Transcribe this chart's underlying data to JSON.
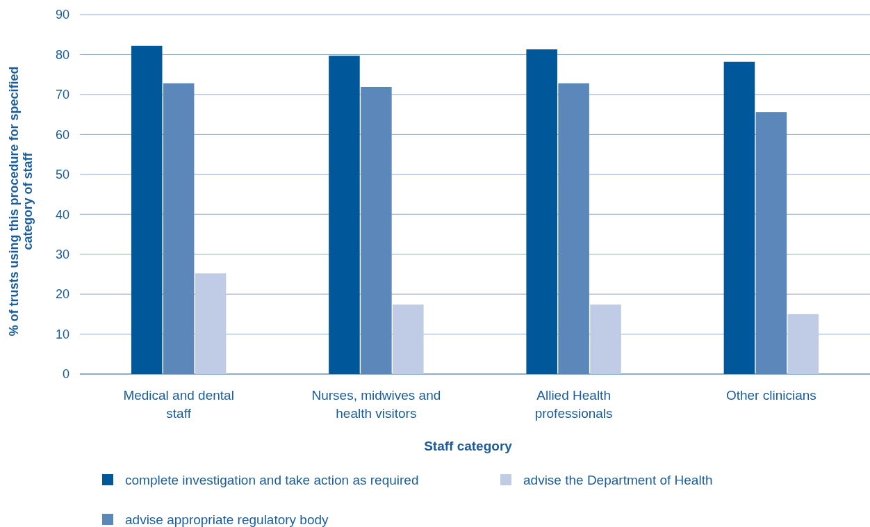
{
  "chart_data": {
    "type": "bar",
    "xlabel": "Staff category",
    "ylabel": "% of trusts using this procedure for specified category of staff",
    "categories": [
      "Medical and dental staff",
      "Nurses, midwives and health visitors",
      "Allied Health professionals",
      "Other clinicians"
    ],
    "series": [
      {
        "name": "complete investigation and take action as required",
        "color": "#00589a",
        "values": [
          82.2,
          79.7,
          81.3,
          78.2
        ]
      },
      {
        "name": "advise appropriate regulatory body",
        "color": "#5b87bb",
        "values": [
          72.8,
          71.9,
          72.8,
          65.6
        ]
      },
      {
        "name": "advise the Department of Health",
        "color": "#c0cbe5",
        "values": [
          25.2,
          17.4,
          17.4,
          15.0
        ]
      }
    ],
    "ylim": [
      0,
      90
    ],
    "yticks": [
      0,
      10,
      20,
      30,
      40,
      50,
      60,
      70,
      80,
      90
    ],
    "grid": "y",
    "legend": "bottom"
  }
}
